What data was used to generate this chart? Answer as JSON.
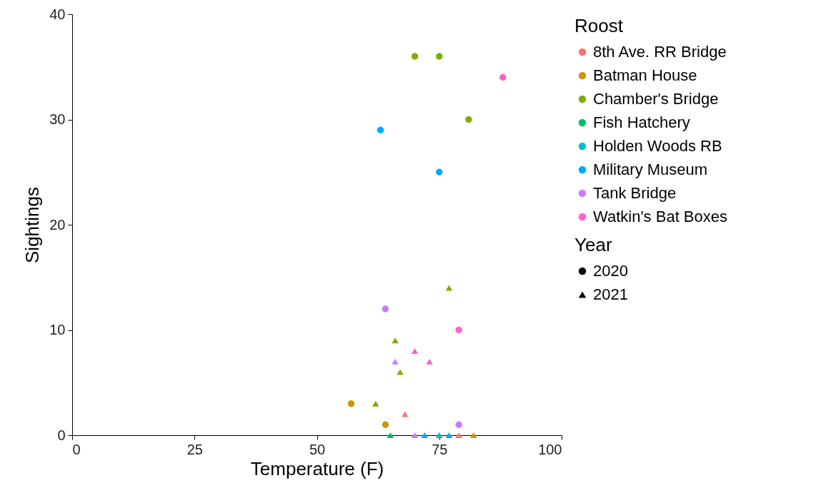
{
  "chart_data": {
    "type": "scatter",
    "xlabel": "Temperature (F)",
    "ylabel": "Sightings",
    "legend_title": "Roost",
    "annotations": [
      "Year",
      "2020",
      "2021"
    ],
    "legend": "right",
    "grid": false,
    "xlim": [
      0,
      100
    ],
    "xticks": [
      0,
      25,
      50,
      75,
      100
    ],
    "ylim": [
      0,
      40
    ],
    "yticks": [
      0,
      10,
      20,
      30,
      40
    ],
    "series": [
      {
        "name": "8th Ave. RR Bridge",
        "marker": "triangle",
        "color": "#f8766d",
        "x": [
          68,
          79
        ],
        "values": [
          2,
          0
        ]
      },
      {
        "name": "Batman House",
        "marker": "circle",
        "color": "#cd9600",
        "x": [
          57,
          64
        ],
        "values": [
          3,
          1
        ]
      },
      {
        "marker": "triangle",
        "color": "#cd9600",
        "x": [
          75,
          82
        ],
        "values": [
          0,
          0
        ]
      },
      {
        "name": "Chamber's Bridge",
        "marker": "circle",
        "color": "#7cae00",
        "x": [
          70,
          75,
          81
        ],
        "values": [
          36,
          36,
          30
        ]
      },
      {
        "marker": "triangle",
        "color": "#7cae00",
        "x": [
          77,
          66,
          67,
          62
        ],
        "values": [
          14,
          9,
          6,
          3
        ]
      },
      {
        "name": "Fish Hatchery",
        "marker": "triangle",
        "color": "#00be67",
        "x": [
          65
        ],
        "values": [
          0
        ]
      },
      {
        "name": "Holden Woods RB",
        "marker": "triangle",
        "color": "#00bfc4",
        "x": [
          75
        ],
        "values": [
          0
        ]
      },
      {
        "name": "Military Museum",
        "marker": "circle",
        "color": "#00a9ff",
        "x": [
          63,
          75
        ],
        "values": [
          29,
          25
        ]
      },
      {
        "marker": "triangle",
        "color": "#00a9ff",
        "x": [
          72,
          77
        ],
        "values": [
          0,
          0
        ]
      },
      {
        "name": "Tank Bridge",
        "marker": "circle",
        "color": "#c77cff",
        "x": [
          64,
          79
        ],
        "values": [
          12,
          1
        ]
      },
      {
        "marker": "triangle",
        "color": "#c77cff",
        "x": [
          66,
          70
        ],
        "values": [
          7,
          0
        ]
      },
      {
        "name": "Watkin's Bat Boxes",
        "marker": "circle",
        "color": "#ff61cc",
        "x": [
          88,
          79
        ],
        "values": [
          34,
          10
        ]
      },
      {
        "marker": "triangle",
        "color": "#ff61cc",
        "x": [
          70,
          73
        ],
        "values": [
          8,
          7
        ]
      }
    ]
  }
}
